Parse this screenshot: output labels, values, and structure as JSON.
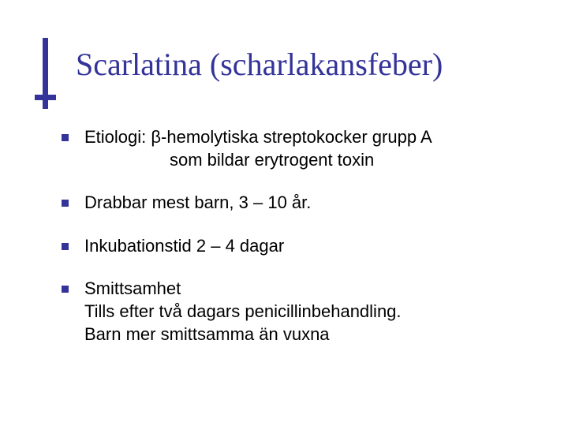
{
  "slide": {
    "title": "Scarlatina (scharlakansfeber)",
    "title_color": "#333399",
    "title_fontsize": 40,
    "accent_color": "#333399",
    "background_color": "#ffffff",
    "body_text_color": "#000000",
    "body_fontsize": 22,
    "bullets": [
      {
        "line1": "Etiologi: β-hemolytiska streptokocker grupp A",
        "line2": "som bildar erytrogent toxin"
      },
      {
        "line1": "Drabbar mest barn, 3 – 10 år."
      },
      {
        "line1": "Inkubationstid 2 – 4 dagar"
      },
      {
        "line1": "Smittsamhet",
        "line2plain_a": "Tills efter två dagars penicillinbehandling.",
        "line2plain_b": "Barn mer smittsamma än vuxna"
      }
    ]
  }
}
